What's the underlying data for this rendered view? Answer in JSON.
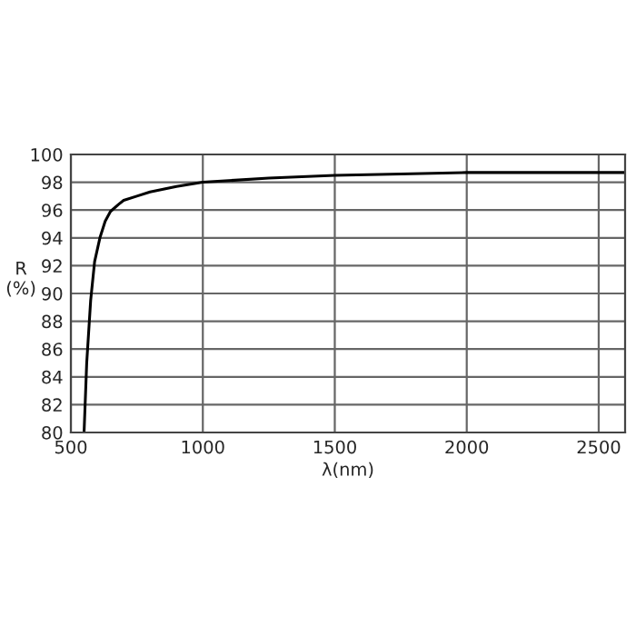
{
  "chart_data": {
    "type": "line",
    "xlabel": "λ(nm)",
    "ylabel": "R\n(%)",
    "x": [
      550,
      560,
      575,
      590,
      610,
      630,
      650,
      680,
      700,
      750,
      800,
      900,
      1000,
      1250,
      1500,
      1750,
      2000,
      2300,
      2600
    ],
    "series": [
      {
        "color": "#000000",
        "values": [
          80,
          85,
          89.5,
          92.3,
          94,
          95.2,
          95.9,
          96.4,
          96.7,
          97.0,
          97.3,
          97.7,
          98.0,
          98.3,
          98.5,
          98.6,
          98.7,
          98.7,
          98.7
        ]
      }
    ],
    "xlim": [
      500,
      2600
    ],
    "xticks": [
      500,
      1000,
      1500,
      2000,
      2500
    ],
    "ylim": [
      80,
      100
    ],
    "yticks": [
      80,
      82,
      84,
      86,
      88,
      90,
      92,
      94,
      96,
      98,
      100
    ],
    "grid": true,
    "marker": "none",
    "line_style": "solid"
  }
}
